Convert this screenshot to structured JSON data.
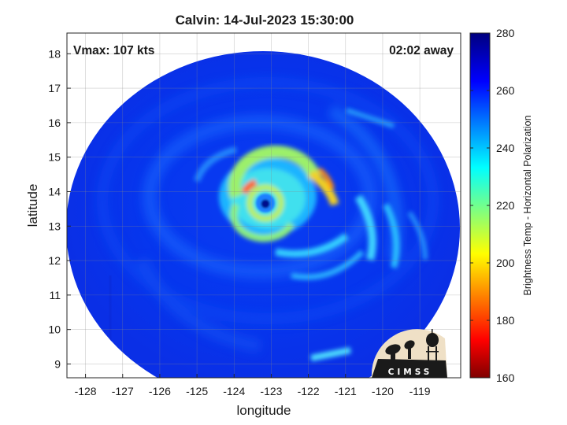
{
  "title": "Calvin: 14-Jul-2023 15:30:00",
  "annotations": {
    "vmax": "Vmax: 107 kts",
    "time_away": "02:02 away"
  },
  "axes": {
    "xlabel": "longitude",
    "ylabel": "latitude",
    "x_ticks": [
      "-128",
      "-127",
      "-126",
      "-125",
      "-124",
      "-123",
      "-122",
      "-121",
      "-120",
      "-119"
    ],
    "y_ticks": [
      "18",
      "17",
      "16",
      "15",
      "14",
      "13",
      "12",
      "11",
      "10",
      "9"
    ],
    "x_values": [
      -128,
      -127,
      -126,
      -125,
      -124,
      -123,
      -122,
      -121,
      -120,
      -119
    ],
    "y_values": [
      18,
      17,
      16,
      15,
      14,
      13,
      12,
      11,
      10,
      9
    ],
    "xlim": [
      -128.5,
      -117.9
    ],
    "ylim": [
      8.6,
      18.6
    ],
    "grid": true
  },
  "colorbar": {
    "label": "Brightness Temp - Horizontal Polarization",
    "ticks": [
      "280",
      "260",
      "240",
      "220",
      "200",
      "180",
      "160"
    ],
    "values": [
      280,
      260,
      240,
      220,
      200,
      180,
      160
    ],
    "range": [
      160,
      280
    ],
    "colormap": "jet",
    "placement": "right"
  },
  "storm": {
    "center_lon": -123.0,
    "center_lat": 13.6,
    "eye_temp": 270,
    "eyewall_min_temp": 195
  },
  "logo": {
    "text": "CIMSS"
  }
}
